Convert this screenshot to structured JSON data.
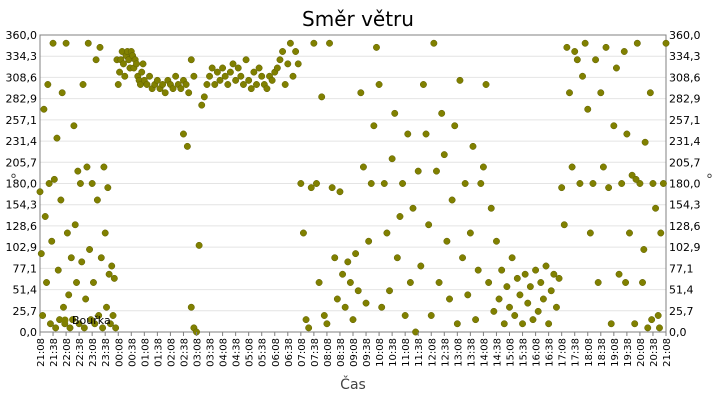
{
  "chart_data": {
    "type": "scatter",
    "title": "Směr větru",
    "xlabel": "Čas",
    "ylabel": "°",
    "ylim": [
      0,
      360
    ],
    "yticks": [
      "0,0",
      "25,7",
      "51,4",
      "77,1",
      "102,9",
      "128,6",
      "154,3",
      "180,0",
      "205,7",
      "231,4",
      "257,1",
      "282,9",
      "308,6",
      "334,3",
      "360,0"
    ],
    "xticks": [
      "21:08",
      "21:38",
      "22:08",
      "22:38",
      "23:08",
      "23:38",
      "00:08",
      "00:38",
      "01:08",
      "01:38",
      "02:08",
      "02:38",
      "03:08",
      "03:38",
      "04:08",
      "04:38",
      "05:08",
      "05:38",
      "06:08",
      "06:38",
      "07:08",
      "07:38",
      "08:08",
      "08:38",
      "09:08",
      "09:38",
      "10:08",
      "10:38",
      "11:08",
      "11:38",
      "12:08",
      "12:38",
      "13:08",
      "13:38",
      "14:08",
      "14:38",
      "15:08",
      "15:38",
      "16:08",
      "16:38",
      "17:08",
      "17:38",
      "18:08",
      "18:38",
      "19:08",
      "19:38",
      "20:08",
      "20:38",
      "21:08"
    ],
    "grid": true,
    "legend_position": "bottom-left",
    "series": [
      {
        "name": "Bouřka",
        "color": "#808000",
        "points": [
          [
            0.0,
            170
          ],
          [
            0.1,
            95
          ],
          [
            0.2,
            20
          ],
          [
            0.3,
            270
          ],
          [
            0.4,
            140
          ],
          [
            0.5,
            60
          ],
          [
            0.6,
            300
          ],
          [
            0.7,
            180
          ],
          [
            0.8,
            10
          ],
          [
            0.9,
            110
          ],
          [
            1.0,
            350
          ],
          [
            1.1,
            185
          ],
          [
            1.2,
            5
          ],
          [
            1.3,
            235
          ],
          [
            1.4,
            75
          ],
          [
            1.5,
            15
          ],
          [
            1.6,
            160
          ],
          [
            1.7,
            290
          ],
          [
            1.8,
            30
          ],
          [
            1.9,
            10
          ],
          [
            2.0,
            350
          ],
          [
            2.1,
            120
          ],
          [
            2.2,
            45
          ],
          [
            2.3,
            5
          ],
          [
            2.4,
            90
          ],
          [
            2.5,
            15
          ],
          [
            2.6,
            250
          ],
          [
            2.7,
            130
          ],
          [
            2.8,
            60
          ],
          [
            2.9,
            195
          ],
          [
            3.0,
            10
          ],
          [
            3.1,
            180
          ],
          [
            3.2,
            85
          ],
          [
            3.3,
            300
          ],
          [
            3.4,
            5
          ],
          [
            3.5,
            40
          ],
          [
            3.6,
            200
          ],
          [
            3.7,
            350
          ],
          [
            3.8,
            100
          ],
          [
            3.9,
            15
          ],
          [
            4.0,
            180
          ],
          [
            4.1,
            60
          ],
          [
            4.2,
            10
          ],
          [
            4.3,
            330
          ],
          [
            4.4,
            160
          ],
          [
            4.5,
            20
          ],
          [
            4.6,
            345
          ],
          [
            4.7,
            90
          ],
          [
            4.8,
            5
          ],
          [
            4.9,
            200
          ],
          [
            5.0,
            120
          ],
          [
            5.1,
            30
          ],
          [
            5.2,
            175
          ],
          [
            5.3,
            70
          ],
          [
            5.4,
            10
          ],
          [
            5.5,
            80
          ],
          [
            5.6,
            20
          ],
          [
            5.7,
            65
          ],
          [
            5.8,
            5
          ],
          [
            5.9,
            330
          ],
          [
            6.0,
            300
          ],
          [
            6.1,
            315
          ],
          [
            6.2,
            330
          ],
          [
            6.3,
            340
          ],
          [
            6.4,
            325
          ],
          [
            6.5,
            310
          ],
          [
            6.6,
            335
          ],
          [
            6.7,
            340
          ],
          [
            6.8,
            330
          ],
          [
            6.9,
            320
          ],
          [
            7.0,
            340
          ],
          [
            7.1,
            335
          ],
          [
            7.2,
            320
          ],
          [
            7.3,
            330
          ],
          [
            7.4,
            325
          ],
          [
            7.5,
            310
          ],
          [
            7.6,
            305
          ],
          [
            7.7,
            300
          ],
          [
            7.8,
            315
          ],
          [
            7.9,
            325
          ],
          [
            8.0,
            305
          ],
          [
            8.2,
            300
          ],
          [
            8.4,
            310
          ],
          [
            8.6,
            295
          ],
          [
            8.8,
            300
          ],
          [
            9.0,
            305
          ],
          [
            9.2,
            295
          ],
          [
            9.4,
            300
          ],
          [
            9.6,
            290
          ],
          [
            9.8,
            305
          ],
          [
            10.0,
            300
          ],
          [
            10.2,
            295
          ],
          [
            10.4,
            310
          ],
          [
            10.6,
            300
          ],
          [
            10.8,
            295
          ],
          [
            11.0,
            305
          ],
          [
            11.2,
            300
          ],
          [
            11.4,
            290
          ],
          [
            11.6,
            330
          ],
          [
            11.8,
            310
          ],
          [
            11.0,
            240
          ],
          [
            11.3,
            225
          ],
          [
            11.6,
            30
          ],
          [
            11.8,
            5
          ],
          [
            12.0,
            0
          ],
          [
            12.2,
            105
          ],
          [
            12.4,
            275
          ],
          [
            12.6,
            285
          ],
          [
            12.8,
            300
          ],
          [
            13.0,
            310
          ],
          [
            13.2,
            320
          ],
          [
            13.4,
            300
          ],
          [
            13.6,
            315
          ],
          [
            13.8,
            305
          ],
          [
            14.0,
            320
          ],
          [
            14.2,
            310
          ],
          [
            14.4,
            300
          ],
          [
            14.6,
            315
          ],
          [
            14.8,
            325
          ],
          [
            15.0,
            305
          ],
          [
            15.2,
            320
          ],
          [
            15.4,
            310
          ],
          [
            15.6,
            300
          ],
          [
            15.8,
            330
          ],
          [
            16.0,
            305
          ],
          [
            16.2,
            295
          ],
          [
            16.4,
            315
          ],
          [
            16.6,
            300
          ],
          [
            16.8,
            320
          ],
          [
            17.0,
            310
          ],
          [
            17.2,
            300
          ],
          [
            17.4,
            295
          ],
          [
            17.6,
            310
          ],
          [
            17.8,
            305
          ],
          [
            18.0,
            315
          ],
          [
            18.2,
            320
          ],
          [
            18.4,
            330
          ],
          [
            18.6,
            340
          ],
          [
            18.8,
            300
          ],
          [
            19.0,
            325
          ],
          [
            19.2,
            350
          ],
          [
            19.4,
            310
          ],
          [
            19.6,
            340
          ],
          [
            19.8,
            325
          ],
          [
            20.0,
            180
          ],
          [
            20.2,
            120
          ],
          [
            20.4,
            15
          ],
          [
            20.6,
            5
          ],
          [
            20.8,
            175
          ],
          [
            21.0,
            350
          ],
          [
            21.2,
            180
          ],
          [
            21.4,
            60
          ],
          [
            21.6,
            285
          ],
          [
            21.8,
            20
          ],
          [
            22.0,
            10
          ],
          [
            22.2,
            350
          ],
          [
            22.4,
            175
          ],
          [
            22.6,
            90
          ],
          [
            22.8,
            40
          ],
          [
            23.0,
            170
          ],
          [
            23.2,
            70
          ],
          [
            23.4,
            30
          ],
          [
            23.6,
            85
          ],
          [
            23.8,
            60
          ],
          [
            24.0,
            15
          ],
          [
            24.2,
            95
          ],
          [
            24.4,
            50
          ],
          [
            24.6,
            290
          ],
          [
            24.8,
            200
          ],
          [
            25.0,
            35
          ],
          [
            25.2,
            110
          ],
          [
            25.4,
            180
          ],
          [
            25.6,
            250
          ],
          [
            25.8,
            345
          ],
          [
            26.0,
            300
          ],
          [
            26.2,
            30
          ],
          [
            26.4,
            180
          ],
          [
            26.6,
            120
          ],
          [
            26.8,
            50
          ],
          [
            27.0,
            210
          ],
          [
            27.2,
            265
          ],
          [
            27.4,
            90
          ],
          [
            27.6,
            140
          ],
          [
            27.8,
            180
          ],
          [
            28.0,
            20
          ],
          [
            28.2,
            240
          ],
          [
            28.4,
            60
          ],
          [
            28.6,
            150
          ],
          [
            28.8,
            0
          ],
          [
            29.0,
            195
          ],
          [
            29.2,
            80
          ],
          [
            29.4,
            300
          ],
          [
            29.6,
            240
          ],
          [
            29.8,
            130
          ],
          [
            30.0,
            20
          ],
          [
            30.2,
            350
          ],
          [
            30.4,
            195
          ],
          [
            30.6,
            60
          ],
          [
            30.8,
            265
          ],
          [
            31.0,
            215
          ],
          [
            31.2,
            110
          ],
          [
            31.4,
            40
          ],
          [
            31.6,
            160
          ],
          [
            31.8,
            250
          ],
          [
            32.0,
            10
          ],
          [
            32.2,
            305
          ],
          [
            32.4,
            90
          ],
          [
            32.6,
            180
          ],
          [
            32.8,
            45
          ],
          [
            33.0,
            120
          ],
          [
            33.2,
            225
          ],
          [
            33.4,
            15
          ],
          [
            33.6,
            75
          ],
          [
            33.8,
            180
          ],
          [
            34.0,
            200
          ],
          [
            34.2,
            300
          ],
          [
            34.4,
            60
          ],
          [
            34.6,
            150
          ],
          [
            34.8,
            25
          ],
          [
            35.0,
            110
          ],
          [
            35.2,
            40
          ],
          [
            35.4,
            75
          ],
          [
            35.6,
            10
          ],
          [
            35.8,
            55
          ],
          [
            36.0,
            30
          ],
          [
            36.2,
            90
          ],
          [
            36.4,
            20
          ],
          [
            36.6,
            65
          ],
          [
            36.8,
            45
          ],
          [
            37.0,
            10
          ],
          [
            37.2,
            70
          ],
          [
            37.4,
            35
          ],
          [
            37.6,
            55
          ],
          [
            37.8,
            15
          ],
          [
            38.0,
            75
          ],
          [
            38.2,
            25
          ],
          [
            38.4,
            60
          ],
          [
            38.6,
            40
          ],
          [
            38.8,
            80
          ],
          [
            39.0,
            10
          ],
          [
            39.2,
            50
          ],
          [
            39.4,
            70
          ],
          [
            39.6,
            30
          ],
          [
            39.8,
            65
          ],
          [
            40.0,
            175
          ],
          [
            40.2,
            130
          ],
          [
            40.4,
            345
          ],
          [
            40.6,
            290
          ],
          [
            40.8,
            200
          ],
          [
            41.0,
            340
          ],
          [
            41.2,
            330
          ],
          [
            41.4,
            180
          ],
          [
            41.6,
            310
          ],
          [
            41.8,
            350
          ],
          [
            42.0,
            270
          ],
          [
            42.2,
            120
          ],
          [
            42.4,
            180
          ],
          [
            42.6,
            330
          ],
          [
            42.8,
            60
          ],
          [
            43.0,
            290
          ],
          [
            43.2,
            200
          ],
          [
            43.4,
            345
          ],
          [
            43.6,
            175
          ],
          [
            43.8,
            10
          ],
          [
            44.0,
            250
          ],
          [
            44.2,
            320
          ],
          [
            44.4,
            70
          ],
          [
            44.6,
            180
          ],
          [
            44.8,
            340
          ],
          [
            45.0,
            240
          ],
          [
            45.2,
            120
          ],
          [
            45.4,
            190
          ],
          [
            45.6,
            10
          ],
          [
            45.8,
            350
          ],
          [
            46.0,
            180
          ],
          [
            46.2,
            60
          ],
          [
            46.4,
            230
          ],
          [
            46.6,
            5
          ],
          [
            46.8,
            290
          ],
          [
            47.0,
            180
          ],
          [
            47.2,
            150
          ],
          [
            47.4,
            20
          ],
          [
            47.6,
            120
          ],
          [
            47.8,
            180
          ],
          [
            48.0,
            350
          ],
          [
            47.5,
            5
          ],
          [
            46.9,
            15
          ],
          [
            46.3,
            100
          ],
          [
            45.7,
            185
          ],
          [
            44.9,
            60
          ]
        ]
      }
    ]
  }
}
